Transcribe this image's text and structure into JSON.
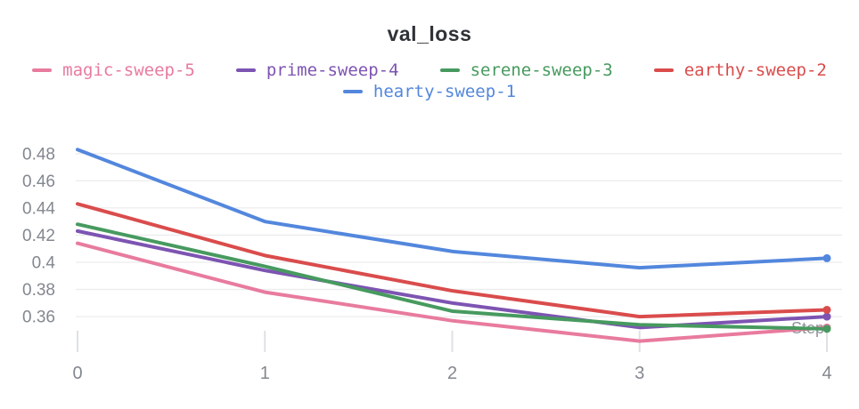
{
  "chart_data": {
    "type": "line",
    "title": "val_loss",
    "xlabel": "Step",
    "x": [
      0,
      1,
      2,
      3,
      4
    ],
    "xticks": [
      "0",
      "1",
      "2",
      "3",
      "4"
    ],
    "yticks": [
      0.36,
      0.38,
      0.4,
      0.42,
      0.44,
      0.46,
      0.48
    ],
    "ylim": [
      0.34,
      0.49
    ],
    "grid": "horizontal-only",
    "legend_position": "top-center",
    "end_markers": true,
    "series": [
      {
        "name": "magic-sweep-5",
        "color": "#e87b9e",
        "values": [
          0.414,
          0.378,
          0.357,
          0.342,
          0.352
        ]
      },
      {
        "name": "prime-sweep-4",
        "color": "#7d54b2",
        "values": [
          0.423,
          0.394,
          0.37,
          0.352,
          0.36
        ]
      },
      {
        "name": "serene-sweep-3",
        "color": "#479a5f",
        "values": [
          0.428,
          0.397,
          0.364,
          0.354,
          0.351
        ]
      },
      {
        "name": "earthy-sweep-2",
        "color": "#da4c4c",
        "values": [
          0.443,
          0.405,
          0.379,
          0.36,
          0.365
        ]
      },
      {
        "name": "hearty-sweep-1",
        "color": "#5387dd",
        "values": [
          0.483,
          0.43,
          0.408,
          0.396,
          0.403
        ]
      }
    ],
    "colors": {
      "gridline": "#ececee",
      "tick_mark": "#dfe1e5",
      "tick_text": "#83878f",
      "axis_title_text": "#8f939b",
      "title_text": "#2f3237"
    }
  }
}
